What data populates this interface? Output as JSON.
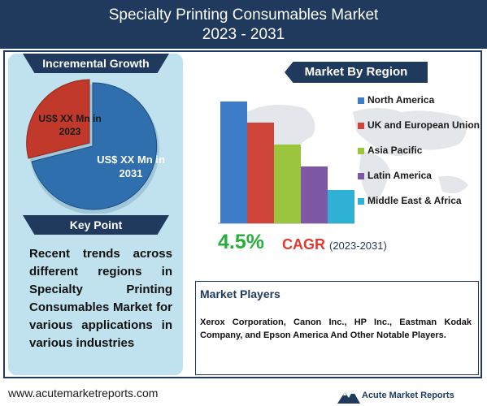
{
  "title": {
    "line1": "Specialty Printing Consumables Market",
    "line2": "2023 - 2031"
  },
  "incremental_growth": {
    "banner": "Incremental Growth",
    "label_2023": "US$ XX Mn in 2023",
    "label_2031": "US$ XX Mn in 2031",
    "colors": {
      "y2023": "#c0392b",
      "y2031": "#2f6fae"
    }
  },
  "key_point": {
    "banner": "Key Point",
    "text": "Recent trends across different regions in Specialty Printing Consumables Market for various applications in various industries"
  },
  "region": {
    "banner": "Market By Region",
    "items": [
      {
        "label": "North America",
        "color": "#3d7cc9"
      },
      {
        "label": "UK and European Union",
        "color": "#d0453a"
      },
      {
        "label": "Asia Pacific",
        "color": "#9bc53d"
      },
      {
        "label": "Latin America",
        "color": "#7e57a6"
      },
      {
        "label": "Middle East & Africa",
        "color": "#2fb1d6"
      }
    ]
  },
  "cagr": {
    "value": "4.5%",
    "label": "CAGR",
    "years": "(2023-2031)"
  },
  "players": {
    "title": "Market Players",
    "text": "Xerox Corporation, Canon Inc., HP Inc., Eastman Kodak Company, and Epson America And Other Notable Players."
  },
  "footer": {
    "url": "www.acutemarketreports.com",
    "logo_text": "Acute Market Reports"
  }
}
